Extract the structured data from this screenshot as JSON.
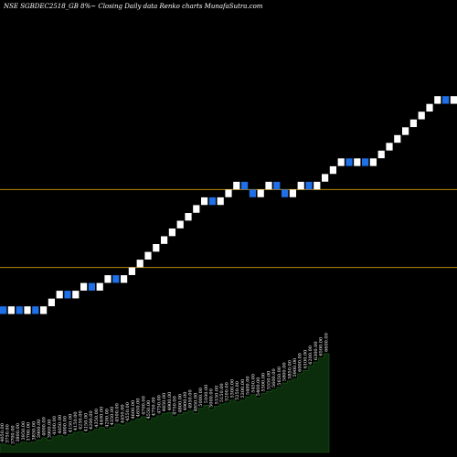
{
  "header": {
    "title": "NSE SGBDEC2518_GB 8%~  Closing Daily data  Renko  charts MunafaSutra.com"
  },
  "chart_data": {
    "type": "renko",
    "title": "NSE SGBDEC2518_GB 8%~  Closing Daily data  Renko  charts MunafaSutra.com",
    "xlabel": "",
    "ylabel": "",
    "ylim": [
      2200,
      4900
    ],
    "colors": {
      "up": "#ffffff",
      "down": "#1f6fe6",
      "volume": "#0b2d0b",
      "line": "#b8860b"
    },
    "reference_lines": [
      3800,
      3300
    ],
    "bricks": [
      {
        "dir": "down",
        "close": 3000
      },
      {
        "dir": "up",
        "close": 3050
      },
      {
        "dir": "down",
        "close": 3000
      },
      {
        "dir": "up",
        "close": 3050
      },
      {
        "dir": "down",
        "close": 3000
      },
      {
        "dir": "up",
        "close": 3050
      },
      {
        "dir": "up",
        "close": 3100
      },
      {
        "dir": "up",
        "close": 3150
      },
      {
        "dir": "down",
        "close": 3100
      },
      {
        "dir": "up",
        "close": 3150
      },
      {
        "dir": "up",
        "close": 3200
      },
      {
        "dir": "down",
        "close": 3150
      },
      {
        "dir": "up",
        "close": 3200
      },
      {
        "dir": "up",
        "close": 3250
      },
      {
        "dir": "down",
        "close": 3200
      },
      {
        "dir": "up",
        "close": 3250
      },
      {
        "dir": "up",
        "close": 3300
      },
      {
        "dir": "up",
        "close": 3350
      },
      {
        "dir": "up",
        "close": 3400
      },
      {
        "dir": "up",
        "close": 3450
      },
      {
        "dir": "up",
        "close": 3500
      },
      {
        "dir": "up",
        "close": 3550
      },
      {
        "dir": "up",
        "close": 3600
      },
      {
        "dir": "up",
        "close": 3650
      },
      {
        "dir": "up",
        "close": 3700
      },
      {
        "dir": "up",
        "close": 3750
      },
      {
        "dir": "down",
        "close": 3700
      },
      {
        "dir": "up",
        "close": 3750
      },
      {
        "dir": "up",
        "close": 3800
      },
      {
        "dir": "up",
        "close": 3850
      },
      {
        "dir": "down",
        "close": 3800
      },
      {
        "dir": "down",
        "close": 3750
      },
      {
        "dir": "up",
        "close": 3800
      },
      {
        "dir": "up",
        "close": 3850
      },
      {
        "dir": "down",
        "close": 3800
      },
      {
        "dir": "down",
        "close": 3750
      },
      {
        "dir": "up",
        "close": 3800
      },
      {
        "dir": "up",
        "close": 3850
      },
      {
        "dir": "down",
        "close": 3800
      },
      {
        "dir": "up",
        "close": 3850
      },
      {
        "dir": "up",
        "close": 3900
      },
      {
        "dir": "up",
        "close": 3950
      },
      {
        "dir": "up",
        "close": 4000
      },
      {
        "dir": "down",
        "close": 3950
      },
      {
        "dir": "up",
        "close": 4000
      },
      {
        "dir": "down",
        "close": 3950
      },
      {
        "dir": "up",
        "close": 4000
      },
      {
        "dir": "up",
        "close": 4050
      },
      {
        "dir": "up",
        "close": 4100
      },
      {
        "dir": "up",
        "close": 4150
      },
      {
        "dir": "up",
        "close": 4200
      },
      {
        "dir": "up",
        "close": 4250
      },
      {
        "dir": "up",
        "close": 4300
      },
      {
        "dir": "up",
        "close": 4350
      },
      {
        "dir": "up",
        "close": 4400
      },
      {
        "dir": "down",
        "close": 4350
      },
      {
        "dir": "up",
        "close": 4400
      },
      {
        "dir": "up",
        "close": 4450
      },
      {
        "dir": "up",
        "close": 4500
      },
      {
        "dir": "down",
        "close": 4450
      },
      {
        "dir": "up",
        "close": 4500
      },
      {
        "dir": "down",
        "close": 4450
      },
      {
        "dir": "up",
        "close": 4500
      }
    ],
    "volume_labels": [
      "4050.00",
      "3750.00",
      "3700.00",
      "3800.00",
      "3950.00",
      "3700.00",
      "3850.00",
      "3900.00",
      "4000.00",
      "3900.00",
      "4100.00",
      "4050.00",
      "4000.00",
      "4150.00",
      "4150.00",
      "4250.00",
      "4150.00",
      "4200.00",
      "4350.00",
      "4400.00",
      "4200.00",
      "4350.00",
      "4500.00",
      "4450.00",
      "4550.00",
      "4600.00",
      "4650.00",
      "4700.00",
      "4550.00",
      "4750.00",
      "4750.00",
      "4850.00",
      "4900.00",
      "4750.00",
      "4800.00",
      "4900.00",
      "4950.00",
      "4850.00",
      "5000.00",
      "5100.00",
      "5000.00",
      "5150.00",
      "5150.00",
      "5200.00",
      "5300.00",
      "5250.00",
      "5300.00",
      "5400.00",
      "5450.00",
      "5400.00",
      "5500.00",
      "5550.00",
      "5600.00",
      "5650.00",
      "5800.00",
      "5850.00",
      "5900.00",
      "6000.00",
      "6100.00",
      "6200.00",
      "6300.00",
      "6500.00",
      "6600.00"
    ],
    "volume_levels": [
      0.08,
      0.07,
      0.06,
      0.08,
      0.1,
      0.09,
      0.1,
      0.12,
      0.14,
      0.12,
      0.15,
      0.16,
      0.15,
      0.17,
      0.19,
      0.2,
      0.18,
      0.2,
      0.22,
      0.24,
      0.22,
      0.24,
      0.27,
      0.26,
      0.28,
      0.3,
      0.32,
      0.34,
      0.3,
      0.33,
      0.35,
      0.37,
      0.38,
      0.34,
      0.36,
      0.38,
      0.4,
      0.37,
      0.42,
      0.45,
      0.41,
      0.44,
      0.46,
      0.47,
      0.5,
      0.48,
      0.5,
      0.53,
      0.55,
      0.52,
      0.56,
      0.58,
      0.6,
      0.62,
      0.66,
      0.68,
      0.7,
      0.75,
      0.78,
      0.82,
      0.86,
      0.9,
      0.94
    ]
  }
}
